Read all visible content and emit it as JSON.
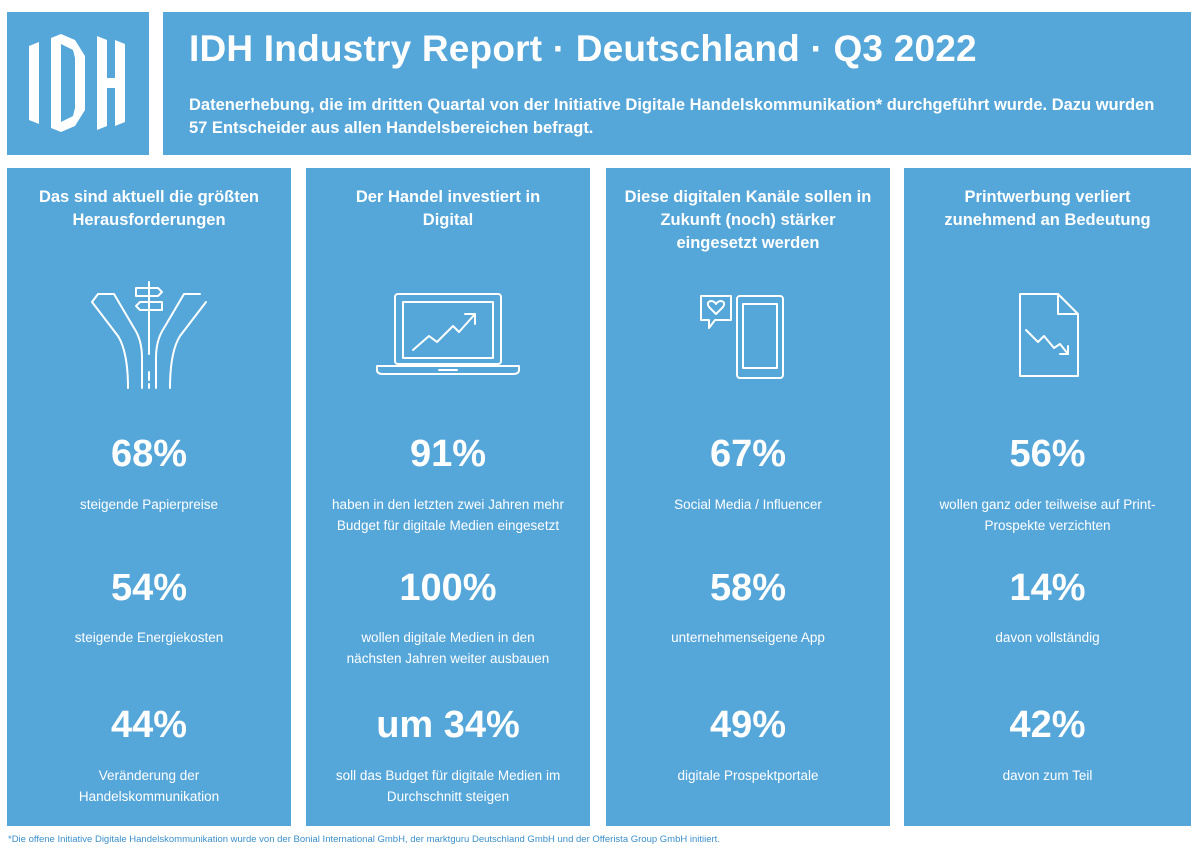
{
  "header": {
    "logo_text": "IDH",
    "title": "IDH Industry Report · Deutschland · Q3 2022",
    "subtitle": "Datenerhebung, die im dritten Quartal von der Initiative Digitale Handelskommunikation* durchgeführt wurde. Dazu wurden 57 Entscheider aus allen Handelsbereichen befragt."
  },
  "colors": {
    "panel_blue": "#55a6d9",
    "text_white": "#ffffff",
    "footnote_blue": "#3b8fc9"
  },
  "columns": [
    {
      "heading": "Das sind aktuell die größten Herausforderungen",
      "icon": "crossroads-signpost-icon",
      "stats": [
        {
          "value": "68%",
          "label": "steigende Papierpreise"
        },
        {
          "value": "54%",
          "label": "steigende Energiekosten"
        },
        {
          "value": "44%",
          "label": "Veränderung der Handelskommunikation"
        }
      ]
    },
    {
      "heading": "Der Handel investiert in Digital",
      "icon": "laptop-growth-chart-icon",
      "stats": [
        {
          "value": "91%",
          "label": "haben in den letzten zwei Jahren mehr Budget für digitale Medien eingesetzt"
        },
        {
          "value": "100%",
          "label": "wollen digitale Medien in den nächsten Jahren weiter ausbauen"
        },
        {
          "value": "um 34%",
          "label": "soll das Budget für digitale Medien im Durchschnitt steigen"
        }
      ]
    },
    {
      "heading": "Diese digitalen Kanäle sollen in Zukunft (noch) stärker eingesetzt werden",
      "icon": "smartphone-heart-bubble-icon",
      "stats": [
        {
          "value": "67%",
          "label": "Social Media / Influencer"
        },
        {
          "value": "58%",
          "label": "unternehmenseigene App"
        },
        {
          "value": "49%",
          "label": "digitale Prospektportale"
        }
      ]
    },
    {
      "heading": "Printwerbung verliert zunehmend an Bedeutung",
      "icon": "document-declining-chart-icon",
      "stats": [
        {
          "value": "56%",
          "label": "wollen ganz oder teilweise auf Print-Prospekte verzichten"
        },
        {
          "value": "14%",
          "label": "davon vollständig"
        },
        {
          "value": "42%",
          "label": "davon zum Teil"
        }
      ]
    }
  ],
  "footnote": "*Die offene Initiative Digitale Handelskommunikation wurde von der Bonial International GmbH, der marktguru Deutschland GmbH und der Offerista Group GmbH initiiert."
}
